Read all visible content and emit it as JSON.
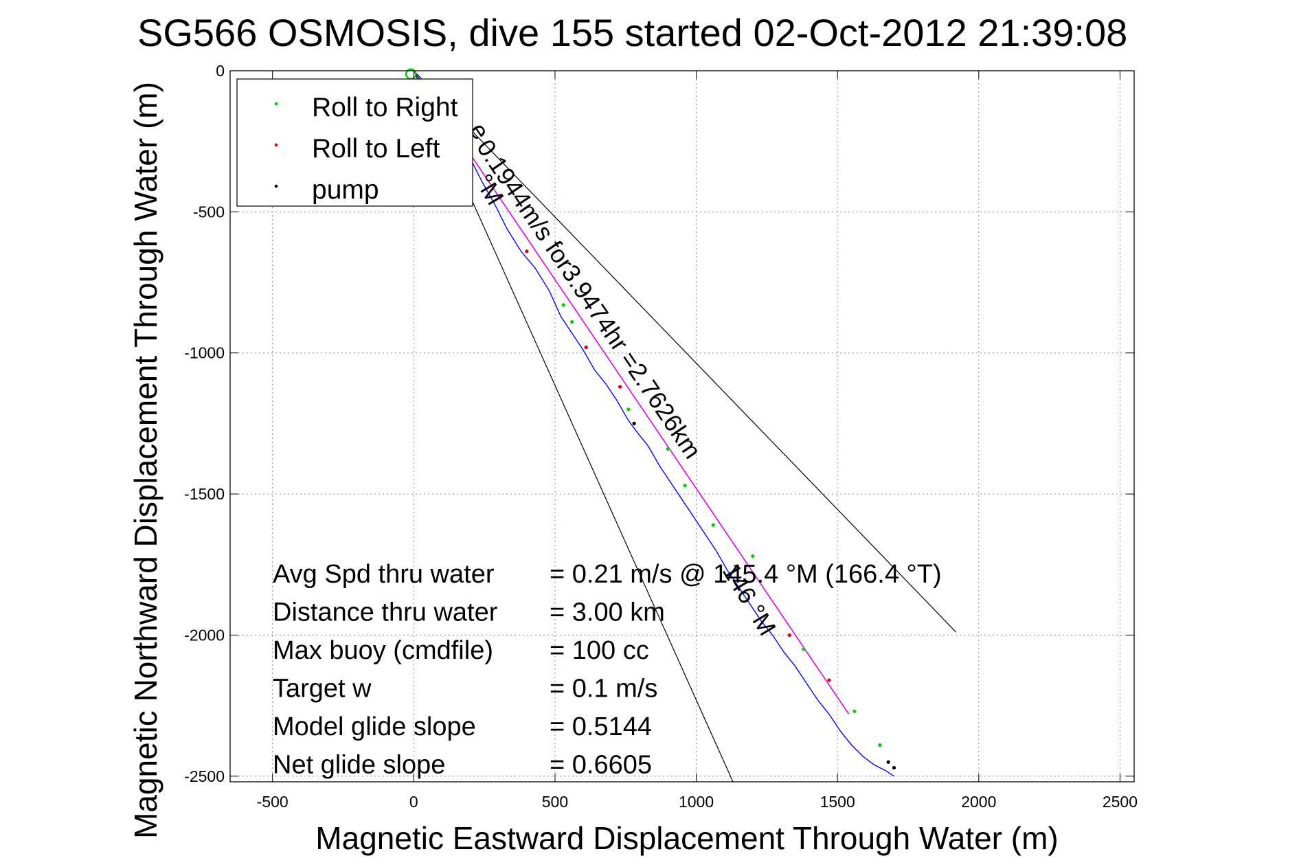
{
  "chart_data": {
    "type": "line",
    "title": "SG566 OSMOSIS, dive 155 started 02-Oct-2012 21:39:08",
    "xlabel": "Magnetic Eastward Displacement Through Water (m)",
    "ylabel": "Magnetic Northward Displacement Through Water (m)",
    "xlim": [
      -650,
      2550
    ],
    "ylim": [
      -2520,
      0
    ],
    "xticks": [
      -500,
      0,
      500,
      1000,
      1500,
      2000,
      2500
    ],
    "yticks": [
      0,
      -500,
      -1000,
      -1500,
      -2000,
      -2500
    ],
    "grid": true,
    "legend": {
      "placement": "top-left",
      "entries": [
        {
          "label": "Roll to Right",
          "color": "#00cc00"
        },
        {
          "label": "Roll to Left",
          "color": "#dd0000"
        },
        {
          "label": "pump",
          "color": "#000000"
        }
      ]
    },
    "track": {
      "name": "track",
      "color": "#0000ff",
      "x": [
        0,
        40,
        90,
        140,
        190,
        240,
        290,
        330,
        380,
        430,
        480,
        520,
        560,
        600,
        640,
        680,
        720,
        760,
        790,
        830,
        870,
        910,
        950,
        990,
        1030,
        1070,
        1110,
        1150,
        1190,
        1230,
        1270,
        1310,
        1350,
        1390,
        1430,
        1470,
        1510,
        1550,
        1590,
        1630,
        1670,
        1700
      ],
      "y": [
        0,
        -60,
        -130,
        -200,
        -290,
        -390,
        -480,
        -560,
        -640,
        -700,
        -780,
        -870,
        -930,
        -990,
        -1060,
        -1110,
        -1170,
        -1240,
        -1280,
        -1330,
        -1400,
        -1460,
        -1520,
        -1580,
        -1640,
        -1700,
        -1770,
        -1830,
        -1890,
        -1950,
        -2000,
        -2060,
        -2110,
        -2170,
        -2230,
        -2280,
        -2340,
        -2390,
        -2430,
        -2460,
        -2480,
        -2500
      ]
    },
    "course_line": {
      "color": "#dd00dd",
      "x": [
        0,
        1540
      ],
      "y": [
        0,
        -2280
      ]
    },
    "bounds": [
      {
        "x": [
          0,
          1920
        ],
        "y": [
          0,
          -1990
        ]
      },
      {
        "x": [
          0,
          1130
        ],
        "y": [
          0,
          -2520
        ]
      }
    ],
    "roll_right_points": {
      "x": [
        80,
        530,
        560,
        760,
        900,
        960,
        1060,
        1200,
        1380,
        1560,
        1650
      ],
      "y": [
        -120,
        -830,
        -890,
        -1200,
        -1340,
        -1470,
        -1610,
        -1720,
        -2050,
        -2270,
        -2390
      ]
    },
    "roll_left_points": {
      "x": [
        400,
        610,
        730,
        1330,
        1470
      ],
      "y": [
        -640,
        -980,
        -1120,
        -2000,
        -2160
      ]
    },
    "pump_points": {
      "x": [
        780,
        1680,
        1700
      ],
      "y": [
        -1250,
        -2450,
        -2470
      ]
    },
    "annotations": {
      "course": "0.1944m/s for3.9474hr =2.7626km",
      "bound_upper": "146 °M",
      "bound_lower": "°M",
      "course_start": "e"
    },
    "stats": [
      {
        "label": "Avg Spd thru water",
        "value": "=  0.21 m/s @ 145.4 °M (166.4 °T)"
      },
      {
        "label": "Distance thru water",
        "value": "=  3.00 km"
      },
      {
        "label": "Max buoy (cmdfile)",
        "value": "= 100 cc"
      },
      {
        "label": "Target w",
        "value": "= 0.1 m/s"
      },
      {
        "label": "Model glide slope",
        "value": "= 0.5144"
      },
      {
        "label": "Net glide slope",
        "value": "= 0.6605"
      }
    ]
  }
}
